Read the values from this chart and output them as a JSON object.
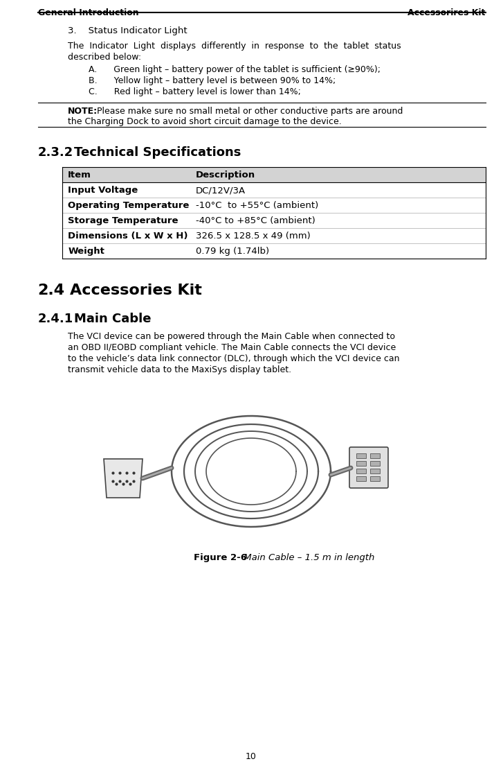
{
  "header_left": "General Introduction",
  "header_right": "Accessorires Kit",
  "section3_title": "3.    Status Indicator Light",
  "section3_para_line1": "The  Indicator  Light  displays  differently  in  response  to  the  tablet  status",
  "section3_para_line2": "described below:",
  "list_items": [
    "A.      Green light – battery power of the tablet is sufficient (≥90%);",
    "B.      Yellow light – battery level is between 90% to 14%;",
    "C.      Red light – battery level is lower than 14%;"
  ],
  "note_bold": "NOTE:",
  "note_line1": " Please make sure no small metal or other conductive parts are around",
  "note_line2": "the Charging Dock to avoid short circuit damage to the device.",
  "section232_label": "2.3.2",
  "section232_title": "Technical Specifications",
  "table_header": [
    "Item",
    "Description"
  ],
  "table_rows": [
    [
      "Input Voltage",
      "DC/12V/3A"
    ],
    [
      "Operating Temperature",
      "-10°C  to +55°C (ambient)"
    ],
    [
      "Storage Temperature",
      "-40°C to +85°C (ambient)"
    ],
    [
      "Dimensions (L x W x H)",
      "326.5 x 128.5 x 49 (mm)"
    ],
    [
      "Weight",
      "0.79 kg (1.74lb)"
    ]
  ],
  "table_row_bold_flags": [
    true,
    true,
    true,
    true,
    true
  ],
  "section24_label": "2.4",
  "section24_title": "Accessories Kit",
  "section241_label": "2.4.1",
  "section241_title": "Main Cable",
  "para241_lines": [
    "The VCI device can be powered through the Main Cable when connected to",
    "an OBD II/EOBD compliant vehicle. The Main Cable connects the VCI device",
    "to the vehicle’s data link connector (DLC), through which the VCI device can",
    "transmit vehicle data to the MaxiSys display tablet."
  ],
  "figure_bold": "Figure 2-6",
  "figure_italic": " Main Cable – 1.5 m in length",
  "page_number": "10",
  "bg_color": "#ffffff",
  "text_color": "#000000",
  "table_header_bg": "#d3d3d3",
  "lm": 0.075,
  "cl": 0.135,
  "rm": 0.965
}
